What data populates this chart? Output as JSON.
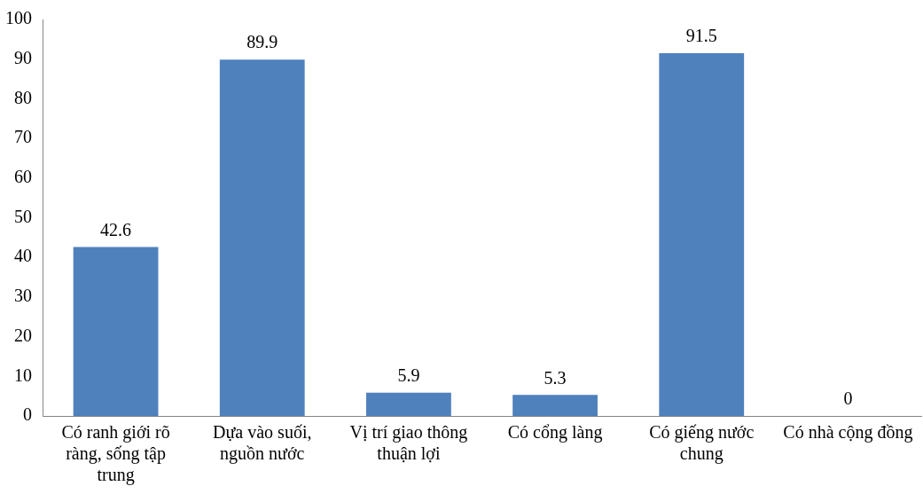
{
  "chart_data": {
    "type": "bar",
    "categories": [
      "Có ranh giới rõ ràng, sống tập trung",
      "Dựa vào suối, nguồn nước",
      "Vị trí giao thông thuận lợi",
      "Có cổng làng",
      "Có giếng nước chung",
      "Có nhà cộng đồng"
    ],
    "values": [
      42.6,
      89.9,
      5.9,
      5.3,
      91.5,
      0
    ],
    "color": "#4f81bd",
    "ylim": [
      0,
      100
    ],
    "yticks": [
      0,
      10,
      20,
      30,
      40,
      50,
      60,
      70,
      80,
      90,
      100
    ],
    "grid": false,
    "legend": false,
    "data_labels": true
  }
}
